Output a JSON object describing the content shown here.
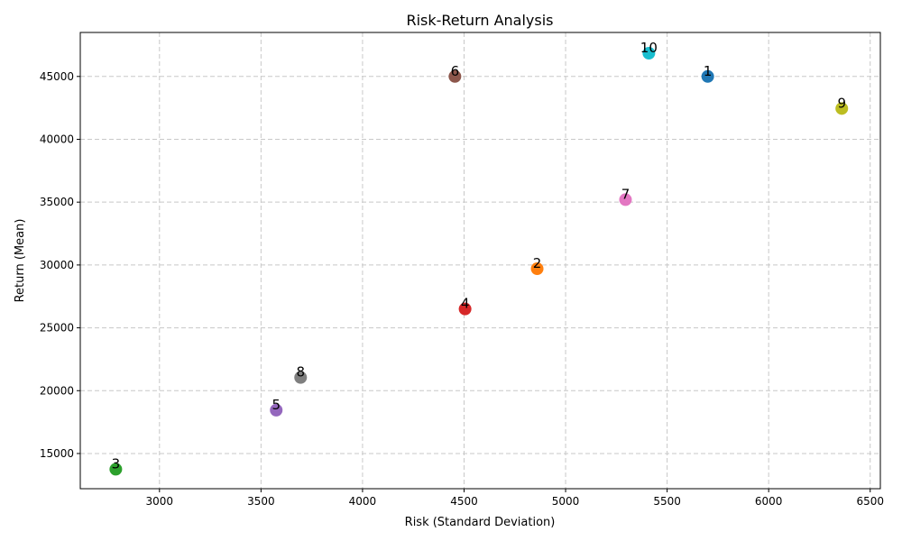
{
  "chart_data": {
    "type": "scatter",
    "title": "Risk-Return Analysis",
    "xlabel": "Risk (Standard Deviation)",
    "ylabel": "Return (Mean)",
    "xlim": [
      2610,
      6550
    ],
    "ylim": [
      12200,
      48500
    ],
    "xticks": [
      3000,
      3500,
      4000,
      4500,
      5000,
      5500,
      6000,
      6500
    ],
    "yticks": [
      15000,
      20000,
      25000,
      30000,
      35000,
      40000,
      45000
    ],
    "grid": true,
    "points": [
      {
        "label": "1",
        "x": 5700,
        "y": 45000,
        "color": "#1f77b4"
      },
      {
        "label": "2",
        "x": 4860,
        "y": 29700,
        "color": "#ff7f0e"
      },
      {
        "label": "3",
        "x": 2785,
        "y": 13750,
        "color": "#2ca02c"
      },
      {
        "label": "4",
        "x": 4505,
        "y": 26500,
        "color": "#d62728"
      },
      {
        "label": "5",
        "x": 3575,
        "y": 18450,
        "color": "#9467bd"
      },
      {
        "label": "6",
        "x": 4455,
        "y": 45000,
        "color": "#8c564b"
      },
      {
        "label": "7",
        "x": 5295,
        "y": 35200,
        "color": "#e377c2"
      },
      {
        "label": "8",
        "x": 3695,
        "y": 21050,
        "color": "#7f7f7f"
      },
      {
        "label": "9",
        "x": 6360,
        "y": 42450,
        "color": "#bcbd22"
      },
      {
        "label": "10",
        "x": 5410,
        "y": 46850,
        "color": "#17becf"
      }
    ]
  }
}
